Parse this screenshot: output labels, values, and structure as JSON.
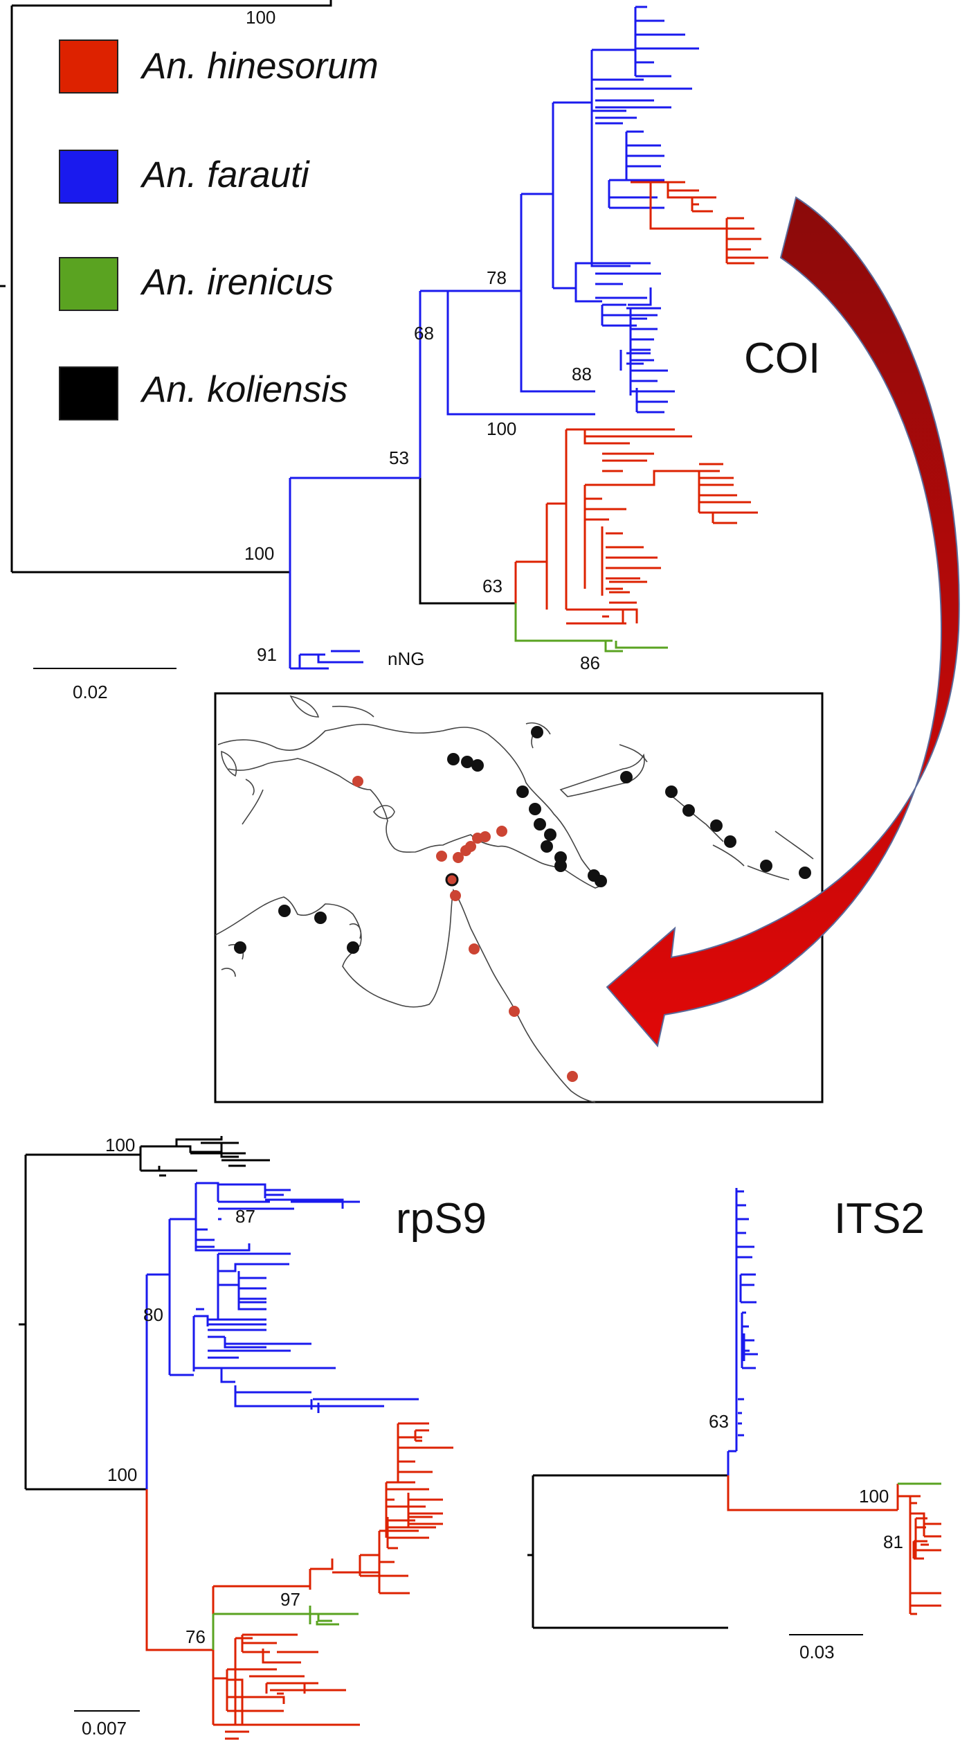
{
  "colors": {
    "hinesorum": "#dd2200",
    "farauti": "#1a1aee",
    "irenicus": "#5aa321",
    "koliensis": "#000000",
    "arrow_dark": "#8b0a0a",
    "arrow_light": "#e00808"
  },
  "legend": [
    {
      "name": "An. hinesorum",
      "color": "#dd2200"
    },
    {
      "name": "An. farauti",
      "color": "#1a1aee"
    },
    {
      "name": "An. irenicus",
      "color": "#5aa321"
    },
    {
      "name": "An. koliensis",
      "color": "#000000"
    }
  ],
  "trees": {
    "coi": {
      "name": "COI",
      "scale": "0.02",
      "nng_label": "nNG",
      "support": [
        "100",
        "78",
        "68",
        "88",
        "100",
        "53",
        "100",
        "63",
        "91",
        "86"
      ]
    },
    "rps9": {
      "name": "rpS9",
      "scale": "0.007",
      "support": [
        "100",
        "87",
        "80",
        "100",
        "97",
        "76"
      ]
    },
    "its2": {
      "name": "ITS2",
      "scale": "0.03",
      "support": [
        "63",
        "100",
        "81"
      ]
    }
  },
  "map": {
    "points": {
      "black": 24,
      "red": 12,
      "red_outlined_black": 1
    }
  }
}
